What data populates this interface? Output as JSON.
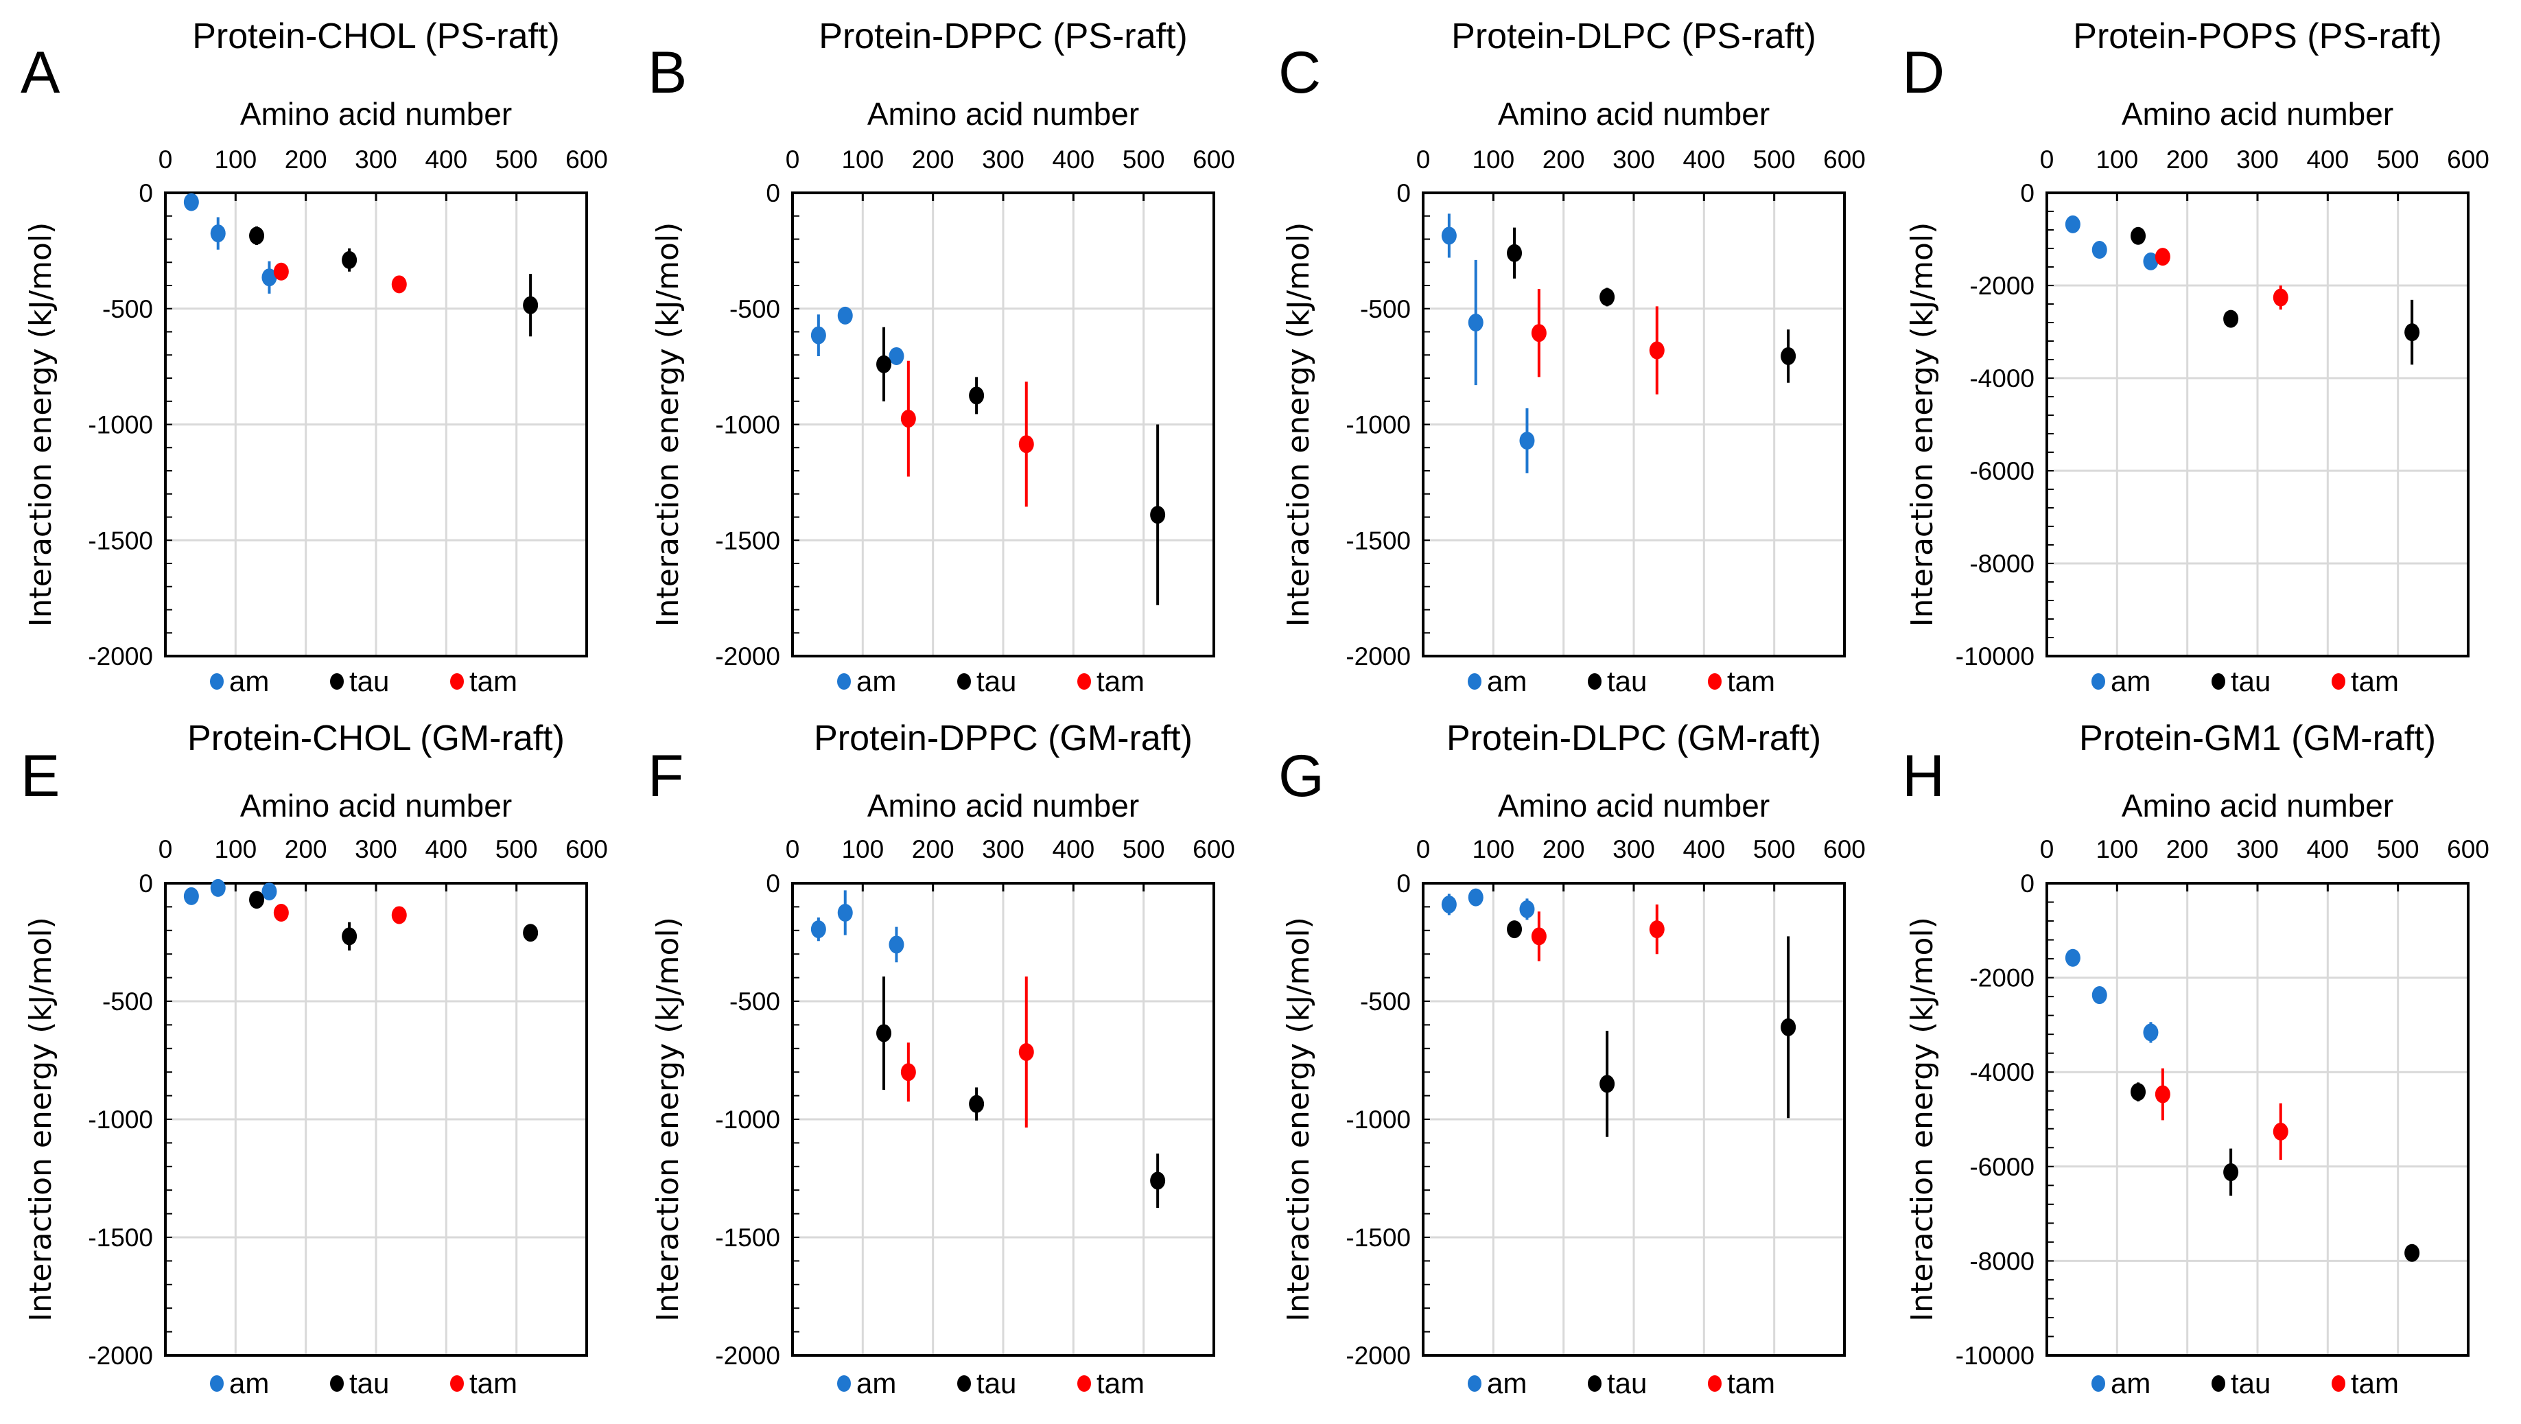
{
  "colors": {
    "am": "#1f77d0",
    "tau": "#000000",
    "tam": "#ff0000",
    "grid": "#d9d9d9"
  },
  "chart_data": [
    {
      "letter": "A",
      "type": "scatter",
      "title": "Protein-CHOL (PS-raft)",
      "xlabel": "Amino acid number",
      "ylabel": "Interaction energy (kJ/mol)",
      "xlim": [
        0,
        600
      ],
      "xticks": [
        0,
        100,
        200,
        300,
        400,
        500,
        600
      ],
      "ylim": [
        -2000,
        0
      ],
      "yticks": [
        0,
        -500,
        -1000,
        -1500,
        -2000
      ],
      "legend": "bottom",
      "grid": true,
      "series": [
        {
          "name": "am",
          "x": [
            37,
            75,
            148
          ],
          "y": [
            -40,
            -175,
            -365
          ],
          "err": [
            10,
            70,
            70
          ]
        },
        {
          "name": "tau",
          "x": [
            130,
            262,
            520
          ],
          "y": [
            -185,
            -290,
            -485
          ],
          "err": [
            40,
            50,
            135
          ]
        },
        {
          "name": "tam",
          "x": [
            165,
            333
          ],
          "y": [
            -340,
            -395
          ],
          "err": [
            30,
            15
          ]
        }
      ]
    },
    {
      "letter": "B",
      "type": "scatter",
      "title": "Protein-DPPC (PS-raft)",
      "xlabel": "Amino acid number",
      "ylabel": "Interaction energy (kJ/mol)",
      "xlim": [
        0,
        600
      ],
      "xticks": [
        0,
        100,
        200,
        300,
        400,
        500,
        600
      ],
      "ylim": [
        -2000,
        0
      ],
      "yticks": [
        0,
        -500,
        -1000,
        -1500,
        -2000
      ],
      "legend": "bottom",
      "grid": true,
      "series": [
        {
          "name": "am",
          "x": [
            37,
            75,
            148
          ],
          "y": [
            -615,
            -530,
            -705
          ],
          "err": [
            90,
            20,
            20
          ]
        },
        {
          "name": "tau",
          "x": [
            130,
            262,
            520
          ],
          "y": [
            -740,
            -875,
            -1390
          ],
          "err": [
            160,
            80,
            390
          ]
        },
        {
          "name": "tam",
          "x": [
            165,
            333
          ],
          "y": [
            -975,
            -1085
          ],
          "err": [
            250,
            270
          ]
        }
      ]
    },
    {
      "letter": "C",
      "type": "scatter",
      "title": "Protein-DLPC (PS-raft)",
      "xlabel": "Amino acid number",
      "ylabel": "Interaction energy (kJ/mol)",
      "xlim": [
        0,
        600
      ],
      "xticks": [
        0,
        100,
        200,
        300,
        400,
        500,
        600
      ],
      "ylim": [
        -2000,
        0
      ],
      "yticks": [
        0,
        -500,
        -1000,
        -1500,
        -2000
      ],
      "legend": "bottom",
      "grid": true,
      "series": [
        {
          "name": "am",
          "x": [
            37,
            75,
            148
          ],
          "y": [
            -185,
            -560,
            -1070
          ],
          "err": [
            95,
            270,
            140
          ]
        },
        {
          "name": "tau",
          "x": [
            130,
            262,
            520
          ],
          "y": [
            -260,
            -450,
            -705
          ],
          "err": [
            110,
            40,
            115
          ]
        },
        {
          "name": "tam",
          "x": [
            165,
            333
          ],
          "y": [
            -605,
            -680
          ],
          "err": [
            190,
            190
          ]
        }
      ]
    },
    {
      "letter": "D",
      "type": "scatter",
      "title": "Protein-POPS (PS-raft)",
      "xlabel": "Amino acid number",
      "ylabel": "Interaction energy (kJ/mol)",
      "xlim": [
        0,
        600
      ],
      "xticks": [
        0,
        100,
        200,
        300,
        400,
        500,
        600
      ],
      "ylim": [
        -10000,
        0
      ],
      "yticks": [
        0,
        -2000,
        -4000,
        -6000,
        -8000,
        -10000
      ],
      "legend": "bottom",
      "grid": true,
      "series": [
        {
          "name": "am",
          "x": [
            37,
            75,
            148
          ],
          "y": [
            -680,
            -1230,
            -1480
          ],
          "err": [
            60,
            80,
            80
          ]
        },
        {
          "name": "tau",
          "x": [
            130,
            262,
            520
          ],
          "y": [
            -930,
            -2720,
            -3010
          ],
          "err": [
            100,
            100,
            700
          ]
        },
        {
          "name": "tam",
          "x": [
            165,
            333
          ],
          "y": [
            -1380,
            -2260
          ],
          "err": [
            80,
            260
          ]
        }
      ]
    },
    {
      "letter": "E",
      "type": "scatter",
      "title": "Protein-CHOL (GM-raft)",
      "xlabel": "Amino acid number",
      "ylabel": "Interaction energy (kJ/mol)",
      "xlim": [
        0,
        600
      ],
      "xticks": [
        0,
        100,
        200,
        300,
        400,
        500,
        600
      ],
      "ylim": [
        -2000,
        0
      ],
      "yticks": [
        0,
        -500,
        -1000,
        -1500,
        -2000
      ],
      "legend": "bottom",
      "grid": true,
      "series": [
        {
          "name": "am",
          "x": [
            37,
            75,
            148
          ],
          "y": [
            -55,
            -20,
            -35
          ],
          "err": [
            15,
            15,
            15
          ]
        },
        {
          "name": "tau",
          "x": [
            130,
            262,
            520
          ],
          "y": [
            -70,
            -225,
            -210
          ],
          "err": [
            20,
            60,
            30
          ]
        },
        {
          "name": "tam",
          "x": [
            165,
            333
          ],
          "y": [
            -125,
            -135
          ],
          "err": [
            15,
            15
          ]
        }
      ]
    },
    {
      "letter": "F",
      "type": "scatter",
      "title": "Protein-DPPC (GM-raft)",
      "xlabel": "Amino acid number",
      "ylabel": "Interaction energy (kJ/mol)",
      "xlim": [
        0,
        600
      ],
      "xticks": [
        0,
        100,
        200,
        300,
        400,
        500,
        600
      ],
      "ylim": [
        -2000,
        0
      ],
      "yticks": [
        0,
        -500,
        -1000,
        -1500,
        -2000
      ],
      "legend": "bottom",
      "grid": true,
      "series": [
        {
          "name": "am",
          "x": [
            37,
            75,
            148
          ],
          "y": [
            -195,
            -125,
            -260
          ],
          "err": [
            50,
            95,
            75
          ]
        },
        {
          "name": "tau",
          "x": [
            130,
            262,
            520
          ],
          "y": [
            -635,
            -935,
            -1260
          ],
          "err": [
            240,
            70,
            115
          ]
        },
        {
          "name": "tam",
          "x": [
            165,
            333
          ],
          "y": [
            -800,
            -715
          ],
          "err": [
            125,
            320
          ]
        }
      ]
    },
    {
      "letter": "G",
      "type": "scatter",
      "title": "Protein-DLPC (GM-raft)",
      "xlabel": "Amino acid number",
      "ylabel": "Interaction energy (kJ/mol)",
      "xlim": [
        0,
        600
      ],
      "xticks": [
        0,
        100,
        200,
        300,
        400,
        500,
        600
      ],
      "ylim": [
        -2000,
        0
      ],
      "yticks": [
        0,
        -500,
        -1000,
        -1500,
        -2000
      ],
      "legend": "bottom",
      "grid": true,
      "series": [
        {
          "name": "am",
          "x": [
            37,
            75,
            148
          ],
          "y": [
            -90,
            -60,
            -110
          ],
          "err": [
            45,
            20,
            45
          ]
        },
        {
          "name": "tau",
          "x": [
            130,
            262,
            520
          ],
          "y": [
            -195,
            -850,
            -610
          ],
          "err": [
            35,
            225,
            385
          ]
        },
        {
          "name": "tam",
          "x": [
            165,
            333
          ],
          "y": [
            -225,
            -195
          ],
          "err": [
            105,
            105
          ]
        }
      ]
    },
    {
      "letter": "H",
      "type": "scatter",
      "title": "Protein-GM1 (GM-raft)",
      "xlabel": "Amino acid number",
      "ylabel": "Interaction energy (kJ/mol)",
      "xlim": [
        0,
        600
      ],
      "xticks": [
        0,
        100,
        200,
        300,
        400,
        500,
        600
      ],
      "ylim": [
        -10000,
        0
      ],
      "yticks": [
        0,
        -2000,
        -4000,
        -6000,
        -8000,
        -10000
      ],
      "legend": "bottom",
      "grid": true,
      "series": [
        {
          "name": "am",
          "x": [
            37,
            75,
            148
          ],
          "y": [
            -1580,
            -2370,
            -3160
          ],
          "err": [
            60,
            80,
            220
          ]
        },
        {
          "name": "tau",
          "x": [
            130,
            262,
            520
          ],
          "y": [
            -4420,
            -6120,
            -7830
          ],
          "err": [
            200,
            500,
            160
          ]
        },
        {
          "name": "tam",
          "x": [
            165,
            333
          ],
          "y": [
            -4470,
            -5260
          ],
          "err": [
            550,
            600
          ]
        }
      ]
    }
  ]
}
